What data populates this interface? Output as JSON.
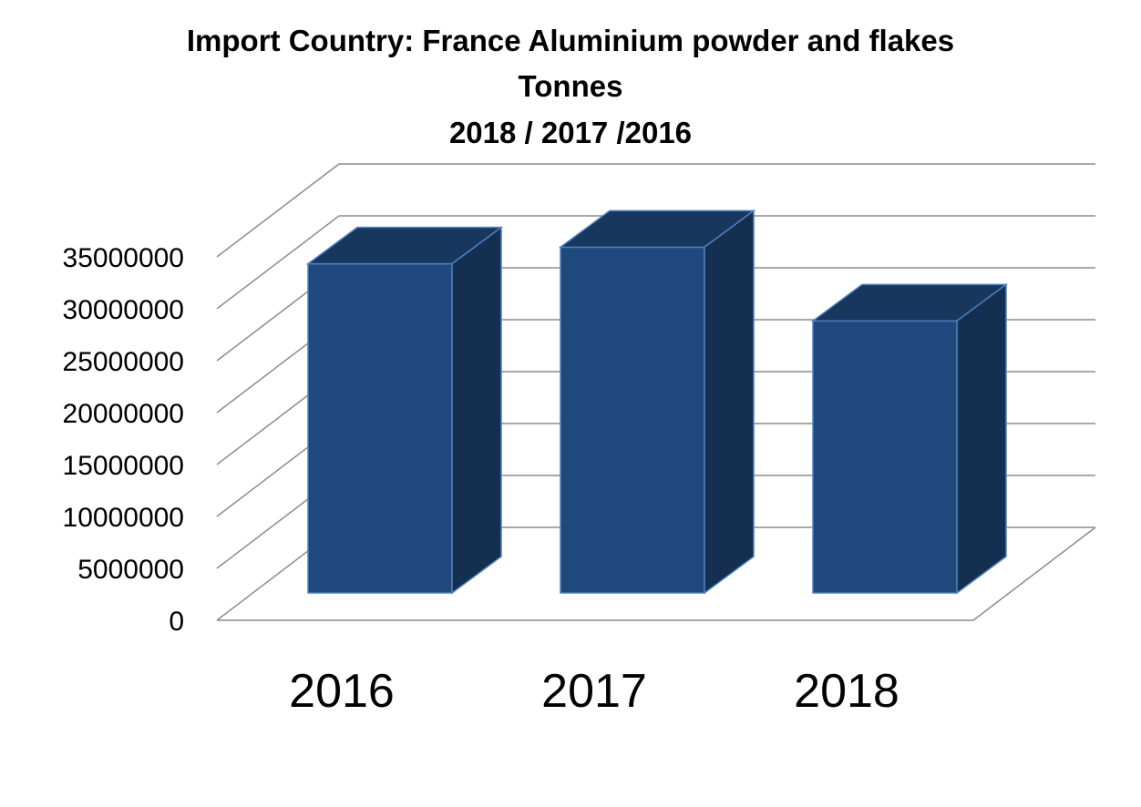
{
  "colors": {
    "bar_front": "#1f497d",
    "bar_top": "#17375e",
    "bar_side": "#142f50",
    "bar_edge": "#4f81bd",
    "grid": "#8c8c8c"
  },
  "chart_data": {
    "type": "bar",
    "style": "3d-column",
    "title_lines": [
      "Import Country: France Aluminium powder and flakes",
      "Tonnes",
      "2018 / 2017 /2016"
    ],
    "categories": [
      "2016",
      "2017",
      "2018"
    ],
    "values": [
      31700000,
      33300000,
      26200000
    ],
    "ylim": [
      0,
      35000000
    ],
    "yticks": [
      "0",
      "5000000",
      "10000000",
      "15000000",
      "20000000",
      "25000000",
      "30000000",
      "35000000"
    ],
    "xlabel": "",
    "ylabel": "",
    "grid": true,
    "legend": "none"
  }
}
